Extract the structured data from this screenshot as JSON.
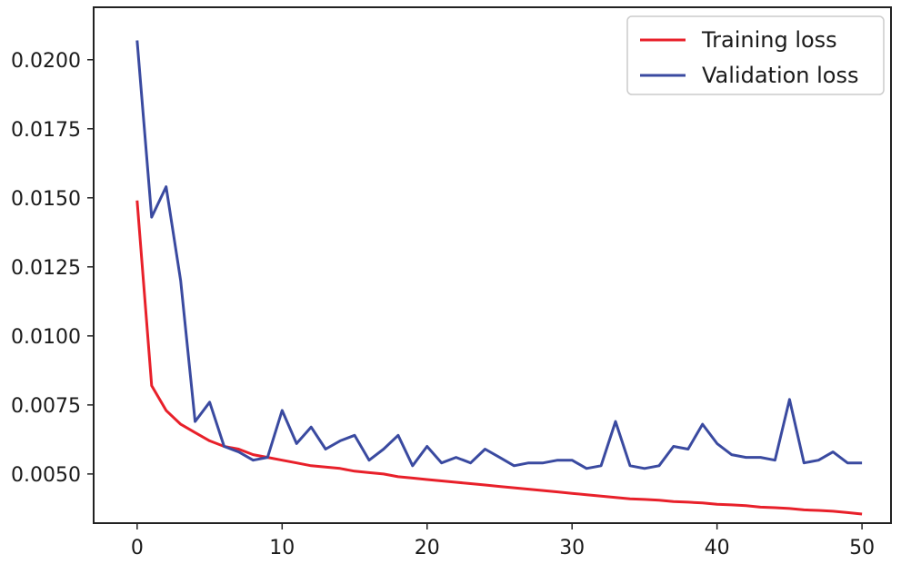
{
  "chart_data": {
    "type": "line",
    "xlim": [
      -3,
      52
    ],
    "ylim": [
      0.00322,
      0.0219
    ],
    "x_ticks": [
      0,
      10,
      20,
      30,
      40,
      50
    ],
    "x_tick_labels": [
      "0",
      "10",
      "20",
      "30",
      "40",
      "50"
    ],
    "y_ticks": [
      0.005,
      0.0075,
      0.01,
      0.0125,
      0.015,
      0.0175,
      0.02
    ],
    "y_tick_labels": [
      "0.0050",
      "0.0075",
      "0.0100",
      "0.0125",
      "0.0150",
      "0.0175",
      "0.0200"
    ],
    "grid": false,
    "legend_position": "top-right",
    "x": [
      0,
      1,
      2,
      3,
      4,
      5,
      6,
      7,
      8,
      9,
      10,
      11,
      12,
      13,
      14,
      15,
      16,
      17,
      18,
      19,
      20,
      21,
      22,
      23,
      24,
      25,
      26,
      27,
      28,
      29,
      30,
      31,
      32,
      33,
      34,
      35,
      36,
      37,
      38,
      39,
      40,
      41,
      42,
      43,
      44,
      45,
      46,
      47,
      48,
      49,
      50
    ],
    "series": [
      {
        "name": "Training loss",
        "color": "#e8202a",
        "values": [
          0.0149,
          0.0082,
          0.0073,
          0.0068,
          0.0065,
          0.0062,
          0.006,
          0.0059,
          0.0057,
          0.0056,
          0.0055,
          0.0054,
          0.0053,
          0.00525,
          0.0052,
          0.0051,
          0.00505,
          0.005,
          0.0049,
          0.00485,
          0.0048,
          0.00475,
          0.0047,
          0.00465,
          0.0046,
          0.00455,
          0.0045,
          0.00445,
          0.0044,
          0.00435,
          0.0043,
          0.00425,
          0.0042,
          0.00415,
          0.0041,
          0.00408,
          0.00405,
          0.004,
          0.00398,
          0.00395,
          0.0039,
          0.00388,
          0.00385,
          0.0038,
          0.00378,
          0.00375,
          0.0037,
          0.00368,
          0.00365,
          0.0036,
          0.00355
        ]
      },
      {
        "name": "Validation loss",
        "color": "#3a4aa0",
        "values": [
          0.0207,
          0.0143,
          0.0154,
          0.012,
          0.0069,
          0.0076,
          0.006,
          0.0058,
          0.0055,
          0.0056,
          0.0073,
          0.0061,
          0.0067,
          0.0059,
          0.0062,
          0.0064,
          0.0055,
          0.0059,
          0.0064,
          0.0053,
          0.006,
          0.0054,
          0.0056,
          0.0054,
          0.0059,
          0.0056,
          0.0053,
          0.0054,
          0.0054,
          0.0055,
          0.0055,
          0.0052,
          0.0053,
          0.0069,
          0.0053,
          0.0052,
          0.0053,
          0.006,
          0.0059,
          0.0068,
          0.0061,
          0.0057,
          0.0056,
          0.0056,
          0.0055,
          0.0077,
          0.0054,
          0.0055,
          0.0058,
          0.0054,
          0.0054
        ]
      }
    ]
  }
}
